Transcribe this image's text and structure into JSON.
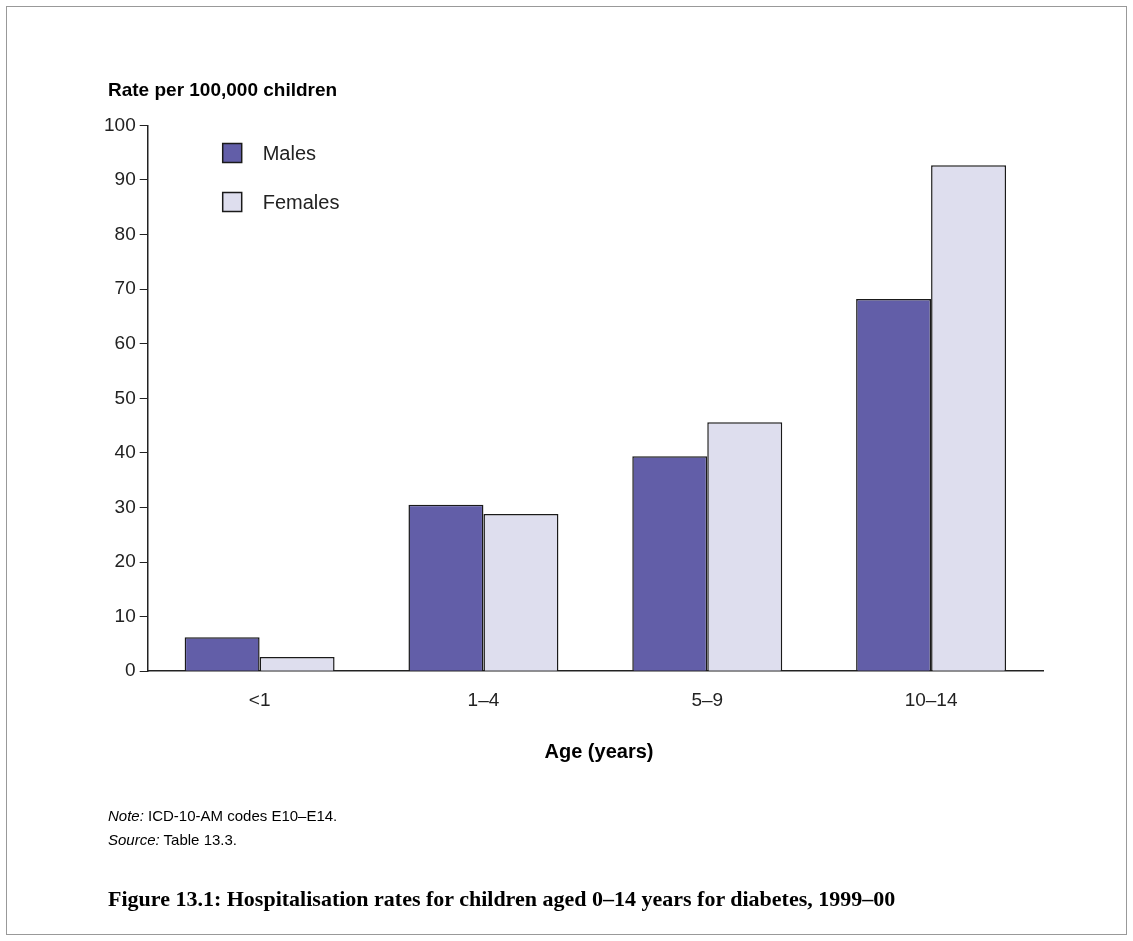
{
  "chart_data": {
    "type": "bar",
    "title": "Figure 13.1: Hospitalisation rates for children aged 0–14 years for diabetes, 1999–00",
    "xlabel": "Age (years)",
    "ylabel": "Rate per 100,000 children",
    "categories": [
      "<1",
      "1–4",
      "5–9",
      "10–14"
    ],
    "series": [
      {
        "name": "Males",
        "color": "#625ea8",
        "values": [
          6.2,
          30.5,
          39.4,
          68.2
        ]
      },
      {
        "name": "Females",
        "color": "#dedeee",
        "values": [
          2.6,
          28.8,
          45.6,
          92.7
        ]
      }
    ],
    "ylim": [
      0,
      100
    ],
    "yticks": [
      0,
      10,
      20,
      30,
      40,
      50,
      60,
      70,
      80,
      90,
      100
    ],
    "legend": "top left",
    "annotations": [
      "Note: ICD-10-AM codes E10–E14.",
      "Source: Table 13.3."
    ]
  }
}
